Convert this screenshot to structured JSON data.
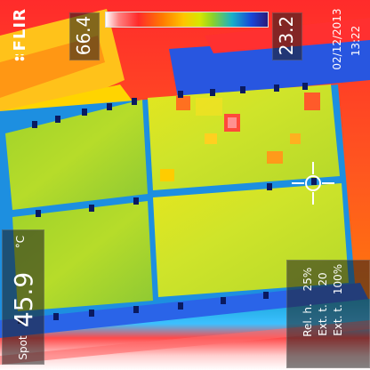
{
  "brand": "FLIR",
  "scale": {
    "max": "66.4",
    "min": "23.2"
  },
  "timestamp": {
    "date": "02/12/2013",
    "time": "13:22"
  },
  "spot": {
    "label": "Spot",
    "value": "45.9",
    "unit": "°C"
  },
  "parameters": [
    {
      "label": "Rel. h.",
      "value": "25%"
    },
    {
      "label": "Ext. t.",
      "value": "20"
    },
    {
      "label": "Ext. t.",
      "value": "100%"
    }
  ]
}
